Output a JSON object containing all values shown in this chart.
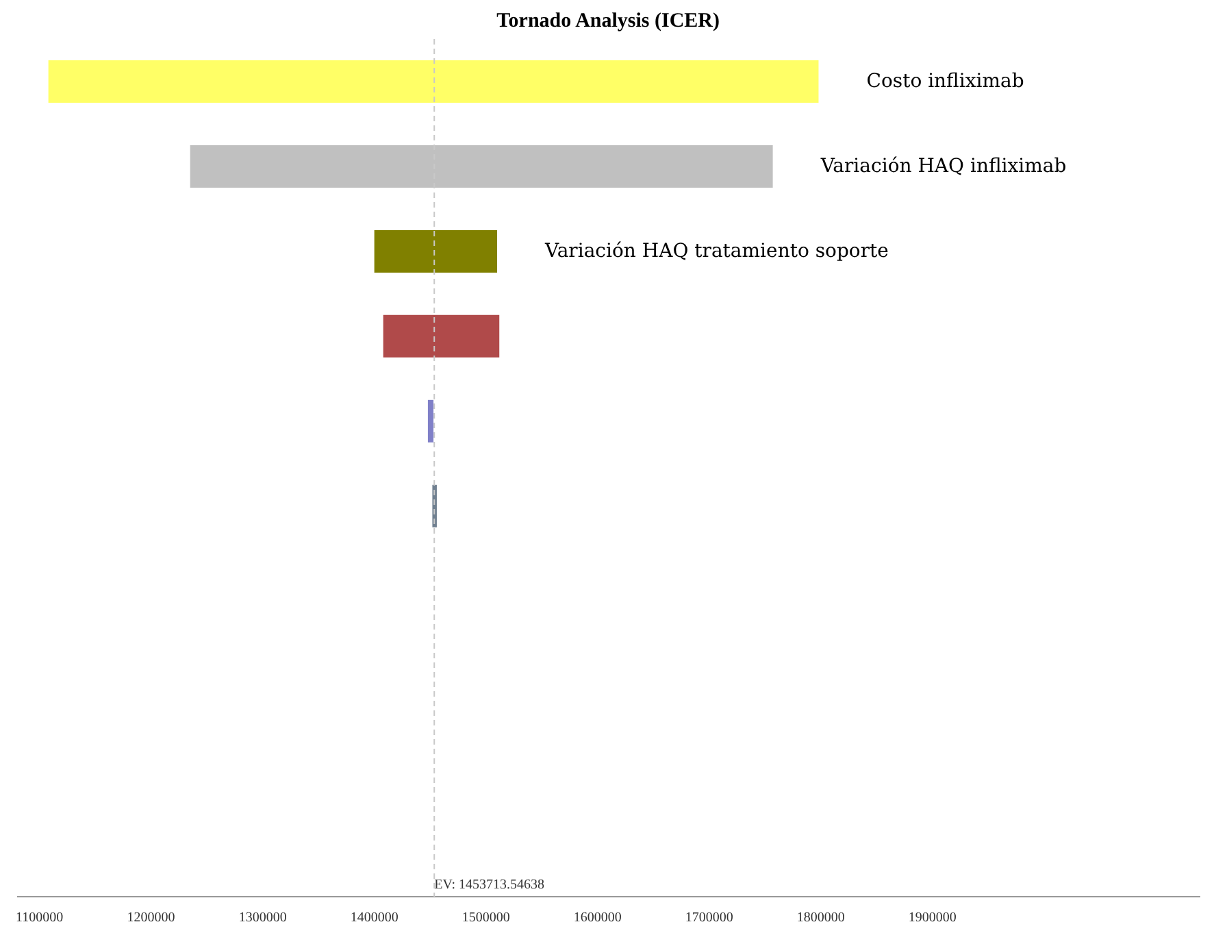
{
  "chart_data": {
    "type": "bar",
    "orientation": "horizontal",
    "title": "Tornado Analysis (ICER)",
    "categories": [
      "Costo infliximab",
      "Variación HAQ infliximab",
      "Variación HAQ tratamiento soporte",
      null,
      null,
      null,
      null,
      null,
      null,
      null
    ],
    "base": [
      1108000,
      1235000,
      1400000,
      1408000,
      1448000,
      1452000,
      null,
      null,
      null,
      null
    ],
    "values": [
      690000,
      522000,
      110000,
      104000,
      5000,
      4000,
      null,
      null,
      null,
      null
    ],
    "colors": [
      "#ffff66",
      "#c0c0c0",
      "#808000",
      "#b04a4a",
      "#8080c8",
      "#708090",
      null,
      null,
      null,
      null
    ],
    "xlim": [
      1080000,
      2140000
    ],
    "xticks": [
      1100000,
      1200000,
      1300000,
      1400000,
      1500000,
      1600000,
      1700000,
      1800000,
      1900000
    ],
    "ref_lines": [
      {
        "axis": "x",
        "value": 1453713.54638,
        "label": "EV: 1453713.54638",
        "color": "#c8c8c8",
        "line_style": "dashed"
      }
    ],
    "grid": false,
    "tick_labels": "x"
  }
}
